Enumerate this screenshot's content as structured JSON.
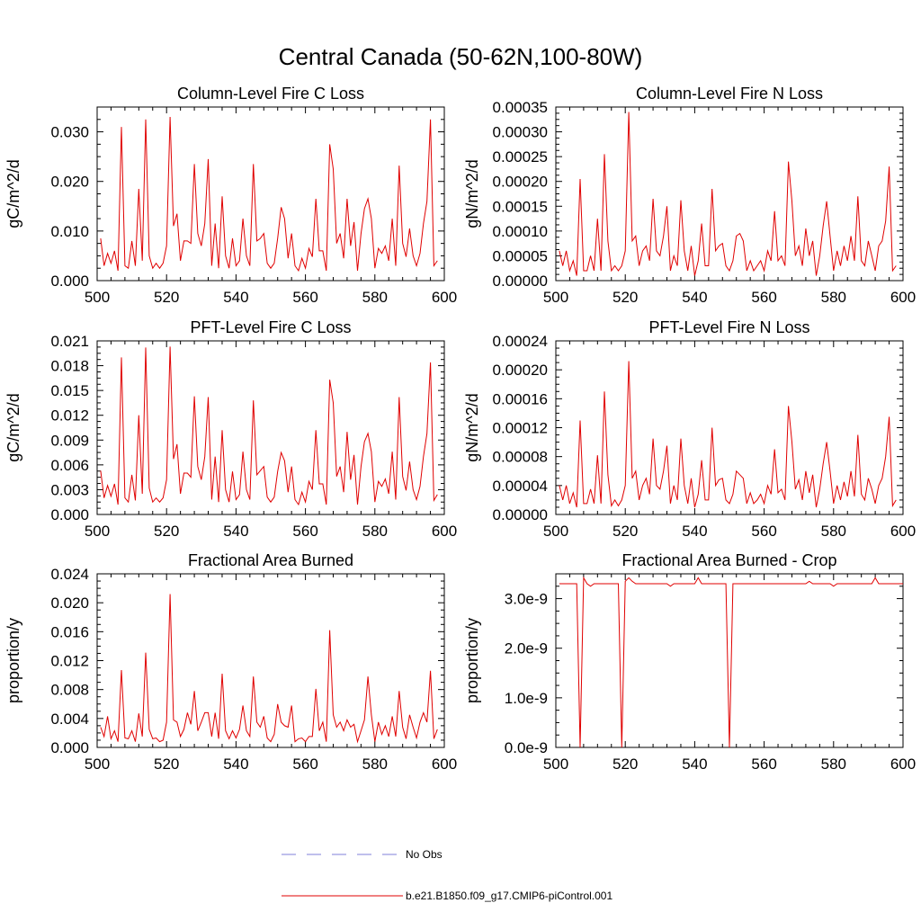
{
  "figure_title": "Central Canada (50-62N,100-80W)",
  "legend": [
    {
      "label": "No Obs",
      "color": "#7f7fd8",
      "style": "dashed"
    },
    {
      "label": "b.e21.B1850.f09_g17.CMIP6-piControl.001",
      "color": "#e00000",
      "style": "solid"
    }
  ],
  "chart_data": [
    {
      "type": "line",
      "title": "Column-Level Fire C Loss",
      "ylabel": "gC/m^2/d",
      "xlim": [
        500,
        600
      ],
      "ylim": [
        0,
        0.035
      ],
      "xticks": [
        "500",
        "520",
        "540",
        "560",
        "580",
        "600"
      ],
      "yticks": [
        {
          "v": 0,
          "label": "0.000"
        },
        {
          "v": 0.01,
          "label": "0.010"
        },
        {
          "v": 0.02,
          "label": "0.020"
        },
        {
          "v": 0.03,
          "label": "0.030"
        }
      ],
      "x_start": 501,
      "color": "#e00000",
      "values": [
        0.0085,
        0.003,
        0.0055,
        0.0035,
        0.006,
        0.002,
        0.031,
        0.003,
        0.0025,
        0.008,
        0.003,
        0.0185,
        0.004,
        0.0325,
        0.005,
        0.0025,
        0.0035,
        0.0025,
        0.0035,
        0.007,
        0.033,
        0.011,
        0.0135,
        0.004,
        0.008,
        0.008,
        0.0075,
        0.0235,
        0.0095,
        0.007,
        0.0115,
        0.0245,
        0.003,
        0.0115,
        0.0025,
        0.017,
        0.005,
        0.0025,
        0.0085,
        0.003,
        0.004,
        0.0125,
        0.005,
        0.003,
        0.0235,
        0.008,
        0.0085,
        0.0095,
        0.0035,
        0.0025,
        0.0035,
        0.0085,
        0.0148,
        0.0125,
        0.0045,
        0.0095,
        0.003,
        0.002,
        0.0045,
        0.0025,
        0.0065,
        0.0048,
        0.0165,
        0.006,
        0.006,
        0.002,
        0.0275,
        0.0225,
        0.0075,
        0.0095,
        0.0045,
        0.0165,
        0.007,
        0.0118,
        0.002,
        0.0095,
        0.0145,
        0.0165,
        0.0125,
        0.0025,
        0.0065,
        0.0055,
        0.007,
        0.004,
        0.0125,
        0.003,
        0.0232,
        0.0075,
        0.0048,
        0.0105,
        0.005,
        0.003,
        0.0055,
        0.0115,
        0.016,
        0.0325,
        0.003,
        0.004
      ]
    },
    {
      "type": "line",
      "title": "Column-Level Fire N Loss",
      "ylabel": "gN/m^2/d",
      "xlim": [
        500,
        600
      ],
      "ylim": [
        0,
        0.00035
      ],
      "xticks": [
        "500",
        "520",
        "540",
        "560",
        "580",
        "600"
      ],
      "yticks": [
        {
          "v": 0,
          "label": "0.00000"
        },
        {
          "v": 5e-05,
          "label": "0.00005"
        },
        {
          "v": 0.0001,
          "label": "0.00010"
        },
        {
          "v": 0.00015,
          "label": "0.00015"
        },
        {
          "v": 0.0002,
          "label": "0.00020"
        },
        {
          "v": 0.00025,
          "label": "0.00025"
        },
        {
          "v": 0.0003,
          "label": "0.00030"
        },
        {
          "v": 0.00035,
          "label": "0.00035"
        }
      ],
      "x_start": 501,
      "color": "#e00000",
      "values": [
        6e-05,
        3e-05,
        6e-05,
        2e-05,
        4e-05,
        1e-05,
        0.000205,
        2e-05,
        2e-05,
        5e-05,
        2e-05,
        0.000125,
        2e-05,
        0.000255,
        8e-05,
        2e-05,
        3e-05,
        2e-05,
        3e-05,
        6e-05,
        0.00034,
        8e-05,
        9e-05,
        3e-05,
        6e-05,
        7e-05,
        4e-05,
        0.000165,
        6e-05,
        5e-05,
        9e-05,
        0.00015,
        2e-05,
        5e-05,
        3e-05,
        0.000162,
        6e-05,
        2e-05,
        7e-05,
        1e-05,
        4e-05,
        0.000115,
        3e-05,
        3e-05,
        0.000185,
        6e-05,
        7e-05,
        7.5e-05,
        3e-05,
        2e-05,
        4e-05,
        9e-05,
        9.5e-05,
        8e-05,
        2e-05,
        4e-05,
        2e-05,
        3e-05,
        4e-05,
        2e-05,
        6e-05,
        4e-05,
        0.00014,
        4e-05,
        5e-05,
        3e-05,
        0.00024,
        0.00016,
        5e-05,
        7e-05,
        3e-05,
        0.000105,
        5e-05,
        8e-05,
        1e-05,
        5e-05,
        0.00011,
        0.00016,
        9e-05,
        2e-05,
        6e-05,
        3e-05,
        7e-05,
        4e-05,
        9e-05,
        4e-05,
        0.00017,
        4e-05,
        3e-05,
        8e-05,
        5e-05,
        2e-05,
        7e-05,
        8e-05,
        0.00012,
        0.00023,
        2e-05,
        3e-05
      ]
    },
    {
      "type": "line",
      "title": "PFT-Level Fire C Loss",
      "ylabel": "gC/m^2/d",
      "xlim": [
        500,
        600
      ],
      "ylim": [
        0,
        0.021
      ],
      "xticks": [
        "500",
        "520",
        "540",
        "560",
        "580",
        "600"
      ],
      "yticks": [
        {
          "v": 0,
          "label": "0.000"
        },
        {
          "v": 0.003,
          "label": "0.003"
        },
        {
          "v": 0.006,
          "label": "0.006"
        },
        {
          "v": 0.009,
          "label": "0.009"
        },
        {
          "v": 0.012,
          "label": "0.012"
        },
        {
          "v": 0.015,
          "label": "0.015"
        },
        {
          "v": 0.018,
          "label": "0.018"
        },
        {
          "v": 0.021,
          "label": "0.021"
        }
      ],
      "x_start": 501,
      "color": "#e00000",
      "values": [
        0.0053,
        0.002,
        0.0035,
        0.0022,
        0.0037,
        0.0012,
        0.019,
        0.002,
        0.0015,
        0.0048,
        0.0017,
        0.012,
        0.0025,
        0.0202,
        0.0032,
        0.0015,
        0.002,
        0.0015,
        0.002,
        0.0042,
        0.0203,
        0.0067,
        0.0085,
        0.0025,
        0.005,
        0.005,
        0.0045,
        0.0143,
        0.0058,
        0.0042,
        0.007,
        0.0142,
        0.0018,
        0.007,
        0.0015,
        0.0102,
        0.003,
        0.0015,
        0.0052,
        0.0018,
        0.0024,
        0.0076,
        0.003,
        0.0018,
        0.0138,
        0.0048,
        0.0053,
        0.0058,
        0.0021,
        0.0015,
        0.0021,
        0.0052,
        0.0075,
        0.0065,
        0.0027,
        0.0058,
        0.0018,
        0.0012,
        0.0027,
        0.0015,
        0.004,
        0.003,
        0.0102,
        0.0037,
        0.0037,
        0.0012,
        0.0163,
        0.0135,
        0.0046,
        0.0058,
        0.0027,
        0.01,
        0.0042,
        0.0072,
        0.0012,
        0.0058,
        0.0088,
        0.0098,
        0.0076,
        0.0015,
        0.004,
        0.0034,
        0.0043,
        0.0025,
        0.0076,
        0.0018,
        0.0142,
        0.0046,
        0.0029,
        0.0064,
        0.003,
        0.0018,
        0.0034,
        0.007,
        0.0098,
        0.0184,
        0.0017,
        0.0024
      ]
    },
    {
      "type": "line",
      "title": "PFT-Level Fire N Loss",
      "ylabel": "gN/m^2/d",
      "xlim": [
        500,
        600
      ],
      "ylim": [
        0,
        0.00024
      ],
      "xticks": [
        "500",
        "520",
        "540",
        "560",
        "580",
        "600"
      ],
      "yticks": [
        {
          "v": 0,
          "label": "0.00000"
        },
        {
          "v": 4e-05,
          "label": "0.00004"
        },
        {
          "v": 8e-05,
          "label": "0.00008"
        },
        {
          "v": 0.00012,
          "label": "0.00012"
        },
        {
          "v": 0.00016,
          "label": "0.00016"
        },
        {
          "v": 0.0002,
          "label": "0.00020"
        },
        {
          "v": 0.00024,
          "label": "0.00024"
        }
      ],
      "x_start": 501,
      "color": "#e00000",
      "values": [
        4e-05,
        2e-05,
        4e-05,
        1.5e-05,
        3e-05,
        1e-05,
        0.00013,
        1.5e-05,
        1.5e-05,
        3.5e-05,
        1.5e-05,
        8.2e-05,
        1.5e-05,
        0.00017,
        5.5e-05,
        1.2e-05,
        2e-05,
        1.2e-05,
        2e-05,
        4e-05,
        0.000212,
        5e-05,
        6e-05,
        2e-05,
        4e-05,
        5e-05,
        2.8e-05,
        0.000105,
        4e-05,
        3.5e-05,
        6e-05,
        9.5e-05,
        1.5e-05,
        4e-05,
        2e-05,
        0.000105,
        4e-05,
        1.5e-05,
        5e-05,
        1e-05,
        2.8e-05,
        7.5e-05,
        2e-05,
        2e-05,
        0.00012,
        4e-05,
        4.8e-05,
        5e-05,
        2e-05,
        1.5e-05,
        2.8e-05,
        6e-05,
        5.5e-05,
        5e-05,
        1.5e-05,
        3e-05,
        1.5e-05,
        2e-05,
        2.8e-05,
        1.5e-05,
        4e-05,
        2.8e-05,
        9e-05,
        3e-05,
        3.5e-05,
        2e-05,
        0.00015,
        0.0001,
        3.5e-05,
        4.8e-05,
        2e-05,
        6e-05,
        3e-05,
        5.5e-05,
        1e-05,
        3.5e-05,
        7e-05,
        0.0001,
        6e-05,
        1.5e-05,
        4e-05,
        2e-05,
        4.5e-05,
        2.5e-05,
        6e-05,
        2.5e-05,
        0.00011,
        2.8e-05,
        2e-05,
        5e-05,
        3.5e-05,
        1.5e-05,
        4e-05,
        5e-05,
        8e-05,
        0.000135,
        1.2e-05,
        2e-05
      ]
    },
    {
      "type": "line",
      "title": "Fractional Area Burned",
      "ylabel": "proportion/y",
      "xlim": [
        500,
        600
      ],
      "ylim": [
        0,
        0.024
      ],
      "xticks": [
        "500",
        "520",
        "540",
        "560",
        "580",
        "600"
      ],
      "yticks": [
        {
          "v": 0,
          "label": "0.000"
        },
        {
          "v": 0.004,
          "label": "0.004"
        },
        {
          "v": 0.008,
          "label": "0.008"
        },
        {
          "v": 0.012,
          "label": "0.012"
        },
        {
          "v": 0.016,
          "label": "0.016"
        },
        {
          "v": 0.02,
          "label": "0.020"
        },
        {
          "v": 0.024,
          "label": "0.024"
        }
      ],
      "x_start": 501,
      "color": "#e00000",
      "values": [
        0.0028,
        0.0015,
        0.0043,
        0.0012,
        0.0023,
        0.0008,
        0.0107,
        0.0013,
        0.0012,
        0.0023,
        0.0008,
        0.0047,
        0.0015,
        0.0131,
        0.0025,
        0.0012,
        0.0013,
        0.0008,
        0.001,
        0.0035,
        0.0212,
        0.0038,
        0.0035,
        0.0015,
        0.0025,
        0.0048,
        0.0032,
        0.0078,
        0.0023,
        0.0035,
        0.0048,
        0.0048,
        0.0015,
        0.0048,
        0.0012,
        0.0102,
        0.0023,
        0.0012,
        0.0023,
        0.0013,
        0.0025,
        0.0058,
        0.0023,
        0.0015,
        0.0098,
        0.0035,
        0.0028,
        0.0043,
        0.0013,
        0.0008,
        0.0018,
        0.006,
        0.0035,
        0.003,
        0.0028,
        0.0058,
        0.0008,
        0.0012,
        0.0013,
        0.0008,
        0.0015,
        0.0015,
        0.0081,
        0.0023,
        0.0035,
        0.0008,
        0.0162,
        0.0045,
        0.0028,
        0.0035,
        0.0023,
        0.0038,
        0.0028,
        0.0032,
        0.0008,
        0.0023,
        0.0038,
        0.0098,
        0.0045,
        0.0008,
        0.0035,
        0.0018,
        0.003,
        0.0015,
        0.0043,
        0.0015,
        0.0078,
        0.0028,
        0.0012,
        0.0045,
        0.0028,
        0.0013,
        0.0035,
        0.0048,
        0.0035,
        0.0106,
        0.0012,
        0.0025
      ]
    },
    {
      "type": "line",
      "title": "Fractional Area Burned - Crop",
      "ylabel": "proportion/y",
      "xlim": [
        500,
        600
      ],
      "ylim": [
        0,
        3.5e-09
      ],
      "xticks": [
        "500",
        "520",
        "540",
        "560",
        "580",
        "600"
      ],
      "yticks": [
        {
          "v": 0,
          "label": "0.0e-9"
        },
        {
          "v": 1e-09,
          "label": "1.0e-9"
        },
        {
          "v": 2e-09,
          "label": "2.0e-9"
        },
        {
          "v": 3e-09,
          "label": "3.0e-9"
        }
      ],
      "x_start": 501,
      "color": "#e00000",
      "values": [
        3.3e-09,
        3.3e-09,
        3.3e-09,
        3.3e-09,
        3.3e-09,
        3.3e-09,
        0,
        3.42e-09,
        3.3e-09,
        3.25e-09,
        3.3e-09,
        3.3e-09,
        3.3e-09,
        3.3e-09,
        3.3e-09,
        3.3e-09,
        3.3e-09,
        3.3e-09,
        0,
        3.35e-09,
        3.42e-09,
        3.35e-09,
        3.3e-09,
        3.3e-09,
        3.3e-09,
        3.3e-09,
        3.3e-09,
        3.3e-09,
        3.3e-09,
        3.3e-09,
        3.3e-09,
        3.3e-09,
        3.25e-09,
        3.3e-09,
        3.3e-09,
        3.3e-09,
        3.3e-09,
        3.3e-09,
        3.3e-09,
        3.3e-09,
        3.42e-09,
        3.3e-09,
        3.3e-09,
        3.3e-09,
        3.3e-09,
        3.3e-09,
        3.3e-09,
        3.3e-09,
        3.3e-09,
        0,
        3.3e-09,
        3.3e-09,
        3.3e-09,
        3.3e-09,
        3.3e-09,
        3.3e-09,
        3.3e-09,
        3.3e-09,
        3.3e-09,
        3.3e-09,
        3.3e-09,
        3.3e-09,
        3.3e-09,
        3.3e-09,
        3.3e-09,
        3.3e-09,
        3.3e-09,
        3.3e-09,
        3.3e-09,
        3.3e-09,
        3.3e-09,
        3.3e-09,
        3.35e-09,
        3.3e-09,
        3.3e-09,
        3.3e-09,
        3.3e-09,
        3.3e-09,
        3.3e-09,
        3.25e-09,
        3.3e-09,
        3.3e-09,
        3.3e-09,
        3.3e-09,
        3.3e-09,
        3.3e-09,
        3.3e-09,
        3.3e-09,
        3.3e-09,
        3.3e-09,
        3.3e-09,
        3.42e-09,
        3.3e-09,
        3.3e-09,
        3.3e-09,
        3.3e-09,
        3.3e-09,
        3.3e-09,
        3.3e-09,
        3.3e-09
      ]
    }
  ]
}
